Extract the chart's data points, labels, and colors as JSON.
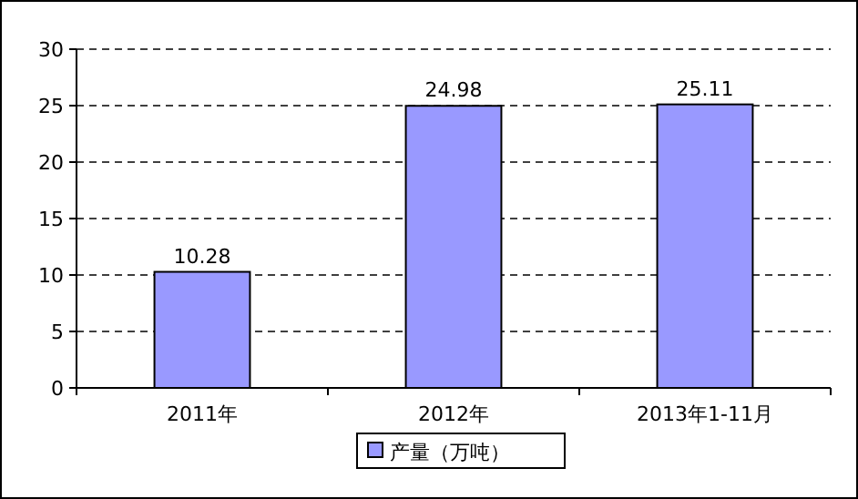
{
  "chart_data": {
    "type": "bar",
    "categories": [
      "2011年",
      "2012年",
      "2013年1-11月"
    ],
    "series": [
      {
        "name": "产量（万吨）",
        "color": "#9999ff",
        "values": [
          10.28,
          24.98,
          25.11
        ]
      }
    ],
    "ylim": [
      0,
      30
    ],
    "yticks": [
      0,
      5,
      10,
      15,
      20,
      25,
      30
    ],
    "grid": "y",
    "legend": "bottom",
    "data_labels": true
  }
}
